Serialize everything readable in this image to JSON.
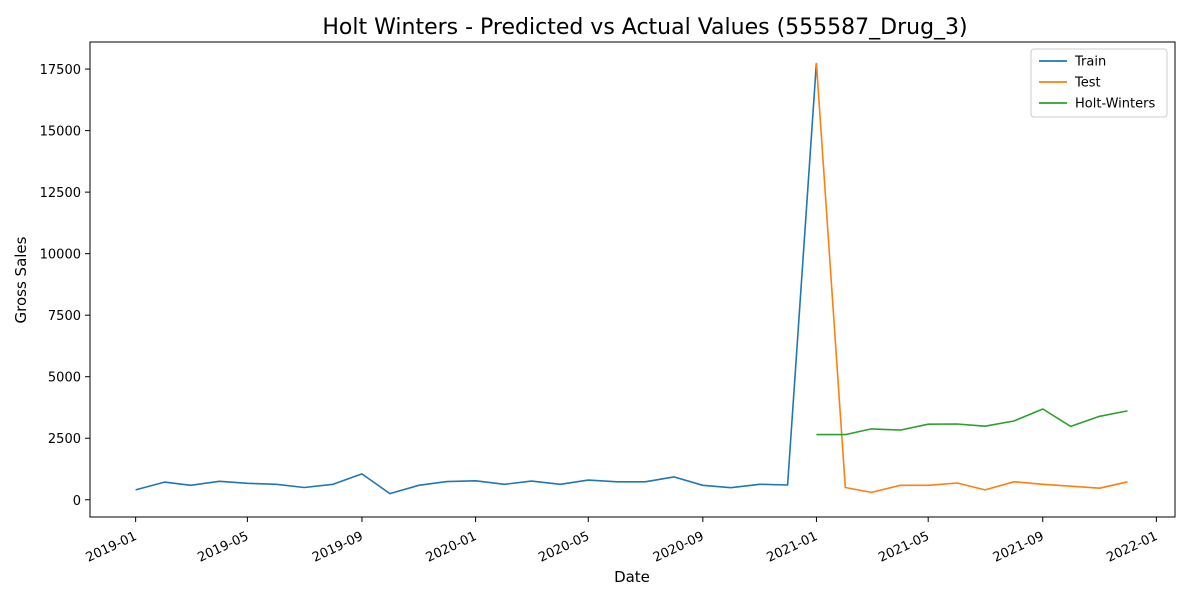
{
  "chart_data": {
    "type": "line",
    "title": "Holt Winters - Predicted vs Actual Values (555587_Drug_3)",
    "xlabel": "Date",
    "ylabel": "Gross Sales",
    "x_ticks": [
      "2019-01",
      "2019-05",
      "2019-09",
      "2020-01",
      "2020-05",
      "2020-09",
      "2021-01",
      "2021-05",
      "2021-09",
      "2022-01"
    ],
    "y_ticks": [
      0,
      2500,
      5000,
      7500,
      10000,
      12500,
      15000,
      17500
    ],
    "xlim": [
      "2018-11-13",
      "2022-01-21"
    ],
    "ylim": [
      -700,
      18600
    ],
    "grid": false,
    "legend_position": "top-right",
    "series": [
      {
        "name": "Train",
        "color": "#1f77b4",
        "x": [
          "2019-01-01",
          "2019-02-01",
          "2019-03-01",
          "2019-04-01",
          "2019-05-01",
          "2019-06-01",
          "2019-07-01",
          "2019-08-01",
          "2019-09-01",
          "2019-10-01",
          "2019-11-01",
          "2019-12-01",
          "2020-01-01",
          "2020-02-01",
          "2020-03-01",
          "2020-04-01",
          "2020-05-01",
          "2020-06-01",
          "2020-07-01",
          "2020-08-01",
          "2020-09-01",
          "2020-10-01",
          "2020-11-01",
          "2020-12-01",
          "2021-01-01"
        ],
        "values": [
          400,
          720,
          590,
          750,
          670,
          630,
          500,
          630,
          1050,
          250,
          590,
          740,
          770,
          630,
          760,
          630,
          800,
          730,
          730,
          930,
          590,
          490,
          630,
          600,
          17750
        ]
      },
      {
        "name": "Test",
        "color": "#ff7f0e",
        "x": [
          "2021-01-01",
          "2021-02-01",
          "2021-03-01",
          "2021-04-01",
          "2021-05-01",
          "2021-06-01",
          "2021-07-01",
          "2021-08-01",
          "2021-09-01",
          "2021-10-01",
          "2021-11-01",
          "2021-12-01"
        ],
        "values": [
          17750,
          500,
          300,
          590,
          590,
          680,
          400,
          730,
          630,
          550,
          470,
          730
        ]
      },
      {
        "name": "Holt-Winters",
        "color": "#2ca02c",
        "x": [
          "2021-01-01",
          "2021-02-01",
          "2021-03-01",
          "2021-04-01",
          "2021-05-01",
          "2021-06-01",
          "2021-07-01",
          "2021-08-01",
          "2021-09-01",
          "2021-10-01",
          "2021-11-01",
          "2021-12-01"
        ],
        "values": [
          2650,
          2650,
          2880,
          2830,
          3070,
          3080,
          2990,
          3200,
          3690,
          2980,
          3390,
          3610
        ]
      }
    ]
  }
}
